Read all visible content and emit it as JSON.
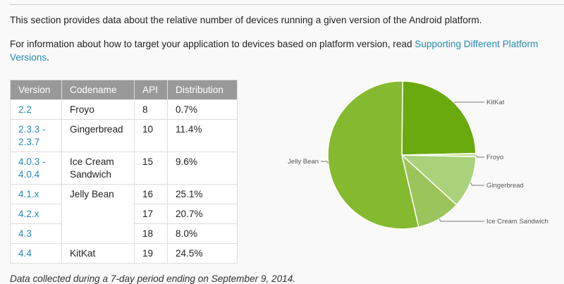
{
  "intro": {
    "line1": "This section provides data about the relative number of devices running a given version of the Android platform.",
    "line2_text": "For information about how to target your application to devices based on platform version, read ",
    "line2_link": "Supporting Different Platform Versions",
    "line2_end": "."
  },
  "table": {
    "headers": [
      "Version",
      "Codename",
      "API",
      "Distribution"
    ],
    "rows": [
      {
        "version": "2.2",
        "codename": "Froyo",
        "api": "8",
        "distribution": "0.7%"
      },
      {
        "version": "2.3.3 - 2.3.7",
        "codename": "Gingerbread",
        "api": "10",
        "distribution": "11.4%"
      },
      {
        "version": "4.0.3 - 4.0.4",
        "codename": "Ice Cream Sandwich",
        "api": "15",
        "distribution": "9.6%"
      },
      {
        "version": "4.1.x",
        "codename": "Jelly Bean",
        "api": "16",
        "distribution": "25.1%"
      },
      {
        "version": "4.2.x",
        "api": "17",
        "distribution": "20.7%"
      },
      {
        "version": "4.3",
        "api": "18",
        "distribution": "8.0%"
      },
      {
        "version": "4.4",
        "codename": "KitKat",
        "api": "19",
        "distribution": "24.5%"
      }
    ]
  },
  "footer": "Data collected during a 7-day period ending on September 9, 2014.",
  "chart_data": {
    "type": "pie",
    "labels": [
      "KitKat",
      "Froyo",
      "Gingerbread",
      "Ice Cream Sandwich",
      "Jelly Bean"
    ],
    "values": [
      24.5,
      0.7,
      11.4,
      9.6,
      53.8
    ],
    "colors": [
      "#6aaa0e",
      "#c5e09a",
      "#aad27a",
      "#9bc45a",
      "#85b930"
    ]
  }
}
